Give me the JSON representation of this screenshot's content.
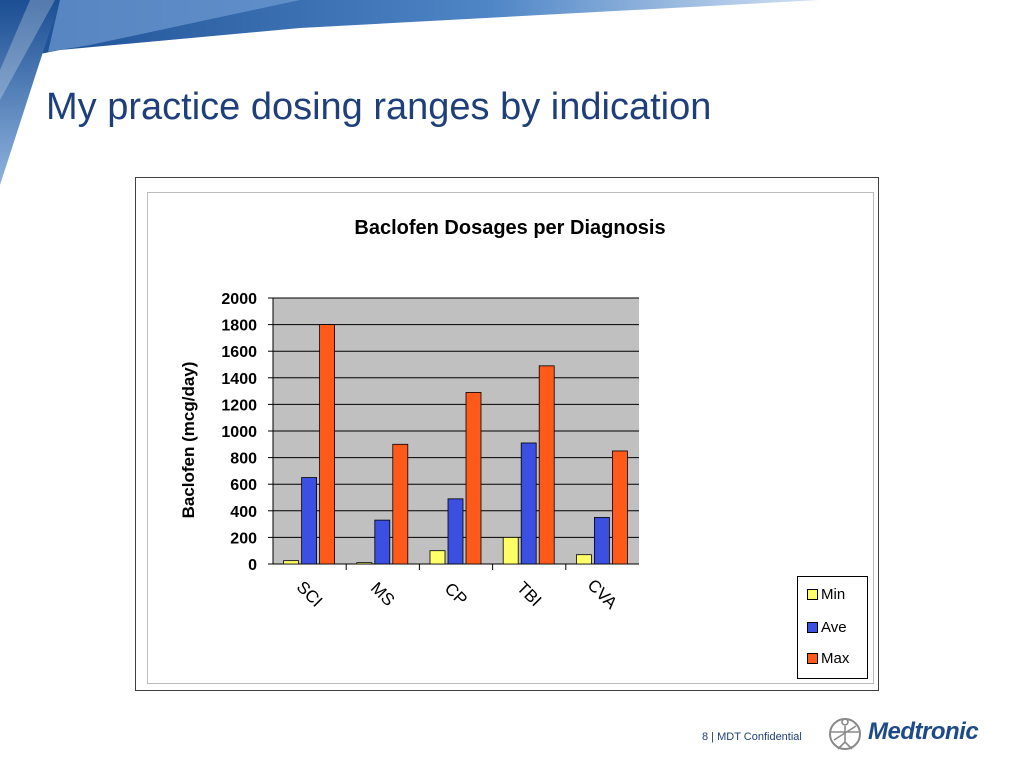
{
  "slide": {
    "title": "My practice dosing ranges by indication",
    "footer": "8 | MDT Confidential",
    "logo_text": "Medtronic",
    "logo_icon": "medtronic-figure-icon"
  },
  "colors": {
    "title": "#1e3f7a",
    "plot_background": "#c0c0c0",
    "min": "#ffff66",
    "ave": "#3b4fe0",
    "max": "#ff5a1a"
  },
  "chart_data": {
    "type": "bar",
    "title": "Baclofen Dosages per Diagnosis",
    "xlabel": "",
    "ylabel": "Baclofen (mcg/day)",
    "categories": [
      "SCI",
      "MS",
      "CP",
      "TBI",
      "CVA"
    ],
    "series": [
      {
        "name": "Min",
        "values": [
          25,
          10,
          100,
          200,
          70
        ]
      },
      {
        "name": "Ave",
        "values": [
          650,
          330,
          490,
          910,
          350
        ]
      },
      {
        "name": "Max",
        "values": [
          1800,
          900,
          1290,
          1490,
          850
        ]
      }
    ],
    "ylim": [
      0,
      2000
    ],
    "yticks": [
      "0",
      "200",
      "400",
      "600",
      "800",
      "1000",
      "1200",
      "1400",
      "1600",
      "1800",
      "2000"
    ],
    "grid": true,
    "legend": "bottom-right"
  }
}
